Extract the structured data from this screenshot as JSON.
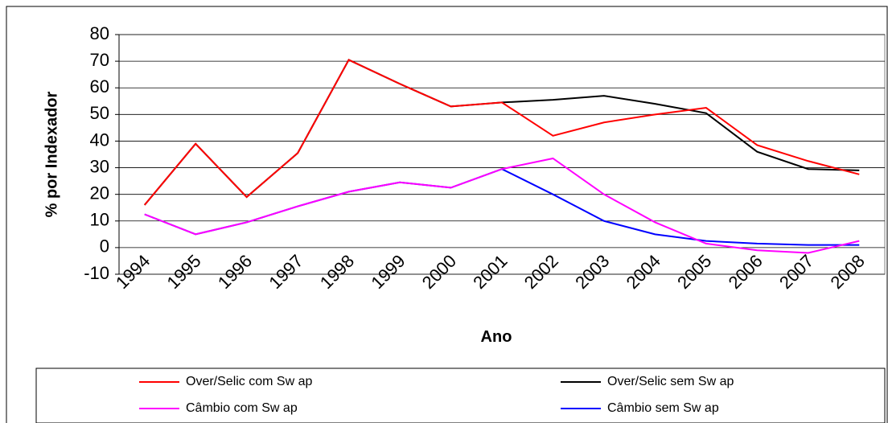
{
  "chart_data": {
    "type": "line",
    "xlabel": "Ano",
    "ylabel": "% por Indexador",
    "categories": [
      "1994",
      "1995",
      "1996",
      "1997",
      "1998",
      "1999",
      "2000",
      "2001",
      "2002",
      "2003",
      "2004",
      "2005",
      "2006",
      "2007",
      "2008"
    ],
    "series": [
      {
        "name": "Over/Selic com Sw ap",
        "color": "#ff0000",
        "values": [
          16,
          39,
          19,
          35.5,
          70.5,
          61.5,
          53,
          54.5,
          42,
          47,
          50,
          52.5,
          38.5,
          32.5,
          27.5
        ]
      },
      {
        "name": "Over/Selic sem Sw ap",
        "color": "#000000",
        "values": [
          16,
          39,
          19,
          35.5,
          70.5,
          61.5,
          53,
          54.5,
          55.5,
          57,
          54,
          50.5,
          36,
          29.5,
          29
        ]
      },
      {
        "name": "Câmbio com Sw ap",
        "color": "#ff00ff",
        "values": [
          12.5,
          5,
          9.5,
          15.5,
          21,
          24.5,
          22.5,
          29.5,
          33.5,
          20,
          9.5,
          1.5,
          -1,
          -2,
          2.5
        ]
      },
      {
        "name": "Câmbio sem Sw ap",
        "color": "#0000ff",
        "values": [
          12.5,
          5,
          9.5,
          15.5,
          21,
          24.5,
          22.5,
          29.5,
          20,
          10,
          5,
          2.5,
          1.5,
          1,
          1
        ]
      }
    ],
    "ylim": [
      -10,
      80
    ],
    "yticks": [
      -10,
      0,
      10,
      20,
      30,
      40,
      50,
      60,
      70,
      80
    ],
    "grid": true
  }
}
